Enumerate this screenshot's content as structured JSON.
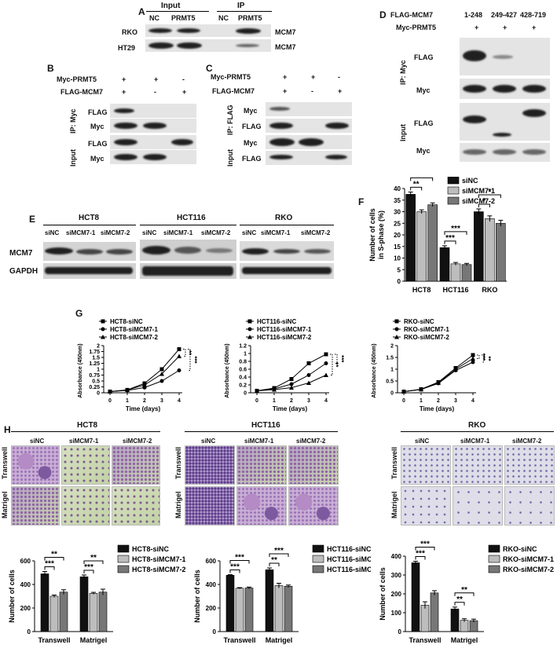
{
  "panels": {
    "A": "A",
    "B": "B",
    "C": "C",
    "D": "D",
    "E": "E",
    "F": "F",
    "G": "G",
    "H": "H"
  },
  "panelA": {
    "header_input": "Input",
    "header_ip": "IP",
    "col_nc": "NC",
    "col_prmt5": "PRMT5",
    "col_nc2": "NC",
    "col_prmt52": "PRMT5",
    "rows": [
      "RKO",
      "HT29"
    ],
    "right_labels": [
      "MCM7",
      "MCM7"
    ]
  },
  "panelB": {
    "rows": [
      "Myc-PRMT5",
      "FLAG-MCM7"
    ],
    "signs": [
      [
        "+",
        "+",
        "-"
      ],
      [
        "+",
        "-",
        "+"
      ]
    ],
    "group_ip": "IP: Myc",
    "group_input": "Input",
    "blots": [
      "FLAG",
      "Myc",
      "FLAG",
      "Myc"
    ]
  },
  "panelC": {
    "rows": [
      "Myc-PRMT5",
      "FLAG-MCM7"
    ],
    "signs": [
      [
        "+",
        "+",
        "-"
      ],
      [
        "+",
        "-",
        "+"
      ]
    ],
    "group_ip": "IP: FLAG",
    "group_input": "Input",
    "blots": [
      "Myc",
      "FLAG",
      "Myc",
      "FLAG"
    ]
  },
  "panelD": {
    "rows": [
      "FLAG-MCM7",
      "Myc-PRMT5"
    ],
    "cols": [
      "1-248",
      "249-427",
      "428-719"
    ],
    "signs": [
      "+",
      "+",
      "+"
    ],
    "group_ip": "IP: Myc",
    "group_input": "Input",
    "blots": [
      "FLAG",
      "Myc",
      "FLAG",
      "Myc"
    ]
  },
  "panelE": {
    "cells": [
      "HCT8",
      "HCT116",
      "RKO"
    ],
    "lanes": [
      "siNC",
      "siMCM7-1",
      "siMCM7-2"
    ],
    "rows": [
      "MCM7",
      "GAPDH"
    ]
  },
  "panelH": {
    "cells": [
      "HCT8",
      "HCT116",
      "RKO"
    ],
    "lanes": [
      "siNC",
      "siMCM7-1",
      "siMCM7-2"
    ],
    "rows": [
      "Transwell",
      "Matrigel"
    ]
  },
  "chart_data": [
    {
      "id": "F",
      "type": "bar",
      "categories": [
        "HCT8",
        "HCT116",
        "RKO"
      ],
      "ylabel": "Number of cells\nin S-phase (%)",
      "ylim": [
        0,
        40
      ],
      "yticks": [
        0,
        5,
        10,
        15,
        20,
        25,
        30,
        35,
        40
      ],
      "series": [
        {
          "name": "siNC",
          "values": [
            37.5,
            14.5,
            30
          ],
          "err": [
            1,
            0.8,
            1.2
          ],
          "color": "#111111"
        },
        {
          "name": "siMCM7-1",
          "values": [
            30,
            7.5,
            27
          ],
          "err": [
            0.8,
            0.6,
            1.2
          ],
          "color": "#bdbdbd"
        },
        {
          "name": "siMCM7-2",
          "values": [
            33,
            7.2,
            25
          ],
          "err": [
            0.8,
            0.5,
            1.3
          ],
          "color": "#777777"
        }
      ],
      "sig": [
        {
          "cat": 0,
          "pair": [
            0,
            1
          ],
          "label": "**"
        },
        {
          "cat": 0,
          "pair": [
            0,
            2
          ],
          "label": "**"
        },
        {
          "cat": 1,
          "pair": [
            0,
            1
          ],
          "label": "***"
        },
        {
          "cat": 1,
          "pair": [
            0,
            2
          ],
          "label": "***"
        },
        {
          "cat": 2,
          "pair": [
            0,
            1
          ],
          "label": "*"
        },
        {
          "cat": 2,
          "pair": [
            0,
            2
          ],
          "label": "*"
        }
      ]
    },
    {
      "id": "G1",
      "type": "line",
      "xlabel": "Time (days)",
      "ylabel": "Absorbance (450nm)",
      "x": [
        0,
        1,
        2,
        3,
        4
      ],
      "ylim": [
        0,
        2.0
      ],
      "yticks": [
        0,
        0.25,
        0.5,
        0.75,
        1.0,
        1.25,
        1.5,
        1.75,
        2.0
      ],
      "series": [
        {
          "name": "HCT8-siNC",
          "values": [
            0.05,
            0.12,
            0.4,
            1.0,
            1.85
          ],
          "marker": "square"
        },
        {
          "name": "HCT8-siMCM7-1",
          "values": [
            0.05,
            0.1,
            0.22,
            0.5,
            0.95
          ],
          "marker": "circle"
        },
        {
          "name": "HCT8-siMCM7-2",
          "values": [
            0.05,
            0.12,
            0.33,
            0.8,
            1.55
          ],
          "marker": "triangle"
        }
      ],
      "sig": [
        "**",
        "***"
      ]
    },
    {
      "id": "G2",
      "type": "line",
      "xlabel": "Time (days)",
      "ylabel": "Absorbance (450nm)",
      "x": [
        0,
        1,
        2,
        3,
        4
      ],
      "ylim": [
        0,
        1.2
      ],
      "yticks": [
        0,
        0.2,
        0.4,
        0.6,
        0.8,
        1.0,
        1.2
      ],
      "series": [
        {
          "name": "HCT116-siNC",
          "values": [
            0.05,
            0.12,
            0.35,
            0.75,
            0.98
          ],
          "marker": "square"
        },
        {
          "name": "HCT116-siMCM7-1",
          "values": [
            0.05,
            0.1,
            0.22,
            0.45,
            0.75
          ],
          "marker": "circle"
        },
        {
          "name": "HCT116-siMCM7-2",
          "values": [
            0.05,
            0.08,
            0.13,
            0.25,
            0.45
          ],
          "marker": "triangle"
        }
      ],
      "sig": [
        "**",
        "***"
      ]
    },
    {
      "id": "G3",
      "type": "line",
      "xlabel": "Time (days)",
      "ylabel": "Absorbance (450nm)",
      "x": [
        0,
        1,
        2,
        3,
        4
      ],
      "ylim": [
        0,
        2.0
      ],
      "yticks": [
        0,
        0.5,
        1.0,
        1.5,
        2.0
      ],
      "series": [
        {
          "name": "RKO-siNC",
          "values": [
            0.05,
            0.15,
            0.45,
            1.05,
            1.6
          ],
          "marker": "square"
        },
        {
          "name": "RKO-siMCM7-1",
          "values": [
            0.05,
            0.14,
            0.4,
            0.95,
            1.3
          ],
          "marker": "circle"
        },
        {
          "name": "RKO-siMCM7-2",
          "values": [
            0.05,
            0.14,
            0.42,
            1.0,
            1.45
          ],
          "marker": "triangle"
        }
      ],
      "sig": [
        "***",
        "**"
      ]
    },
    {
      "id": "H1",
      "type": "bar",
      "categories": [
        "Transwell",
        "Matrigel"
      ],
      "ylabel": "Number of cells",
      "ylim": [
        0,
        600
      ],
      "yticks": [
        0,
        200,
        400,
        600
      ],
      "series": [
        {
          "name": "HCT8-siNC",
          "values": [
            490,
            465
          ],
          "err": [
            20,
            15
          ],
          "color": "#111111"
        },
        {
          "name": "HCT8-siMCM7-1",
          "values": [
            300,
            325
          ],
          "err": [
            10,
            8
          ],
          "color": "#bdbdbd"
        },
        {
          "name": "HCT8-siMCM7-2",
          "values": [
            335,
            335
          ],
          "err": [
            20,
            25
          ],
          "color": "#777777"
        }
      ],
      "sig": [
        {
          "cat": 0,
          "pair": [
            0,
            1
          ],
          "label": "***"
        },
        {
          "cat": 0,
          "pair": [
            0,
            2
          ],
          "label": "**"
        },
        {
          "cat": 1,
          "pair": [
            0,
            1
          ],
          "label": "***"
        },
        {
          "cat": 1,
          "pair": [
            0,
            2
          ],
          "label": "**"
        }
      ]
    },
    {
      "id": "H2",
      "type": "bar",
      "categories": [
        "Transwell",
        "Matrigel"
      ],
      "ylabel": "Number of cells",
      "ylim": [
        0,
        600
      ],
      "yticks": [
        0,
        200,
        400,
        600
      ],
      "series": [
        {
          "name": "HCT116-siNC",
          "values": [
            478,
            525
          ],
          "err": [
            5,
            15
          ],
          "color": "#111111"
        },
        {
          "name": "HCT116-siMCM7-1",
          "values": [
            368,
            390
          ],
          "err": [
            5,
            20
          ],
          "color": "#bdbdbd"
        },
        {
          "name": "HCT116-siMCM7-2",
          "values": [
            370,
            385
          ],
          "err": [
            8,
            10
          ],
          "color": "#777777"
        }
      ],
      "sig": [
        {
          "cat": 0,
          "pair": [
            0,
            1
          ],
          "label": "***"
        },
        {
          "cat": 0,
          "pair": [
            0,
            2
          ],
          "label": "***"
        },
        {
          "cat": 1,
          "pair": [
            0,
            1
          ],
          "label": "**"
        },
        {
          "cat": 1,
          "pair": [
            0,
            2
          ],
          "label": "***"
        }
      ]
    },
    {
      "id": "H3",
      "type": "bar",
      "categories": [
        "Transwell",
        "Matrigel"
      ],
      "ylabel": "Number of cells",
      "ylim": [
        0,
        400
      ],
      "yticks": [
        0,
        100,
        200,
        300,
        400
      ],
      "series": [
        {
          "name": "RKO-siNC",
          "values": [
            365,
            120
          ],
          "err": [
            8,
            10
          ],
          "color": "#111111"
        },
        {
          "name": "RKO-siMCM7-1",
          "values": [
            140,
            60
          ],
          "err": [
            18,
            8
          ],
          "color": "#bdbdbd"
        },
        {
          "name": "RKO-siMCM7-2",
          "values": [
            205,
            58
          ],
          "err": [
            12,
            8
          ],
          "color": "#777777"
        }
      ],
      "sig": [
        {
          "cat": 0,
          "pair": [
            0,
            1
          ],
          "label": "***"
        },
        {
          "cat": 0,
          "pair": [
            0,
            2
          ],
          "label": "***"
        },
        {
          "cat": 1,
          "pair": [
            0,
            1
          ],
          "label": "**"
        },
        {
          "cat": 1,
          "pair": [
            0,
            2
          ],
          "label": "**"
        }
      ]
    }
  ]
}
